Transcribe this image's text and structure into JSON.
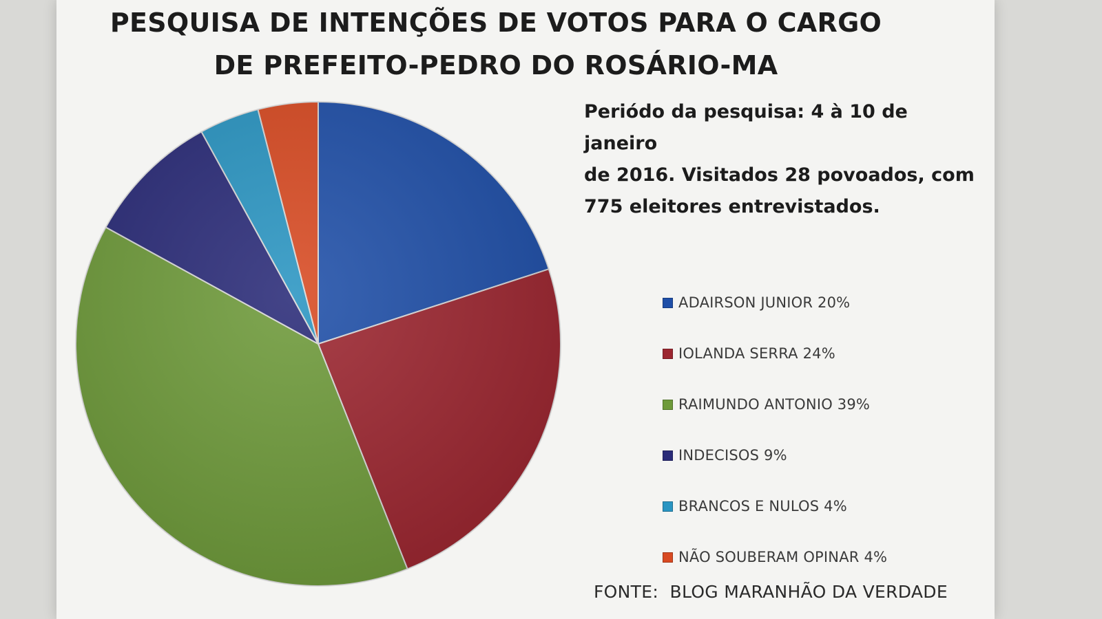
{
  "chart_data": {
    "type": "pie",
    "title_lines": [
      "PESQUISA DE INTENÇÕES DE VOTOS PARA O CARGO",
      "DE PREFEITO-PEDRO DO ROSÁRIO-MA"
    ],
    "slices": [
      {
        "label": "ADAIRSON JUNIOR 20%",
        "value": 20,
        "color": "#1f4fa8"
      },
      {
        "label": "IOLANDA SERRA 24%",
        "value": 24,
        "color": "#9c2630"
      },
      {
        "label": "RAIMUNDO ANTONIO 39%",
        "value": 39,
        "color": "#6e9a3a"
      },
      {
        "label": "INDECISOS 9%",
        "value": 9,
        "color": "#2a2b78"
      },
      {
        "label": "BRANCOS E NULOS 4%",
        "value": 4,
        "color": "#2a95c2"
      },
      {
        "label": "NÃO SOUBERAM OPINAR 4%",
        "value": 4,
        "color": "#d84a22"
      }
    ],
    "legend_position": "right"
  },
  "info_lines": [
    "Periódo da pesquisa: 4 à 10 de janeiro",
    "de 2016. Visitados 28 povoados, com",
    "775 eleitores entrevistados."
  ],
  "source": "FONTE:  BLOG MARANHÃO DA VERDADE"
}
